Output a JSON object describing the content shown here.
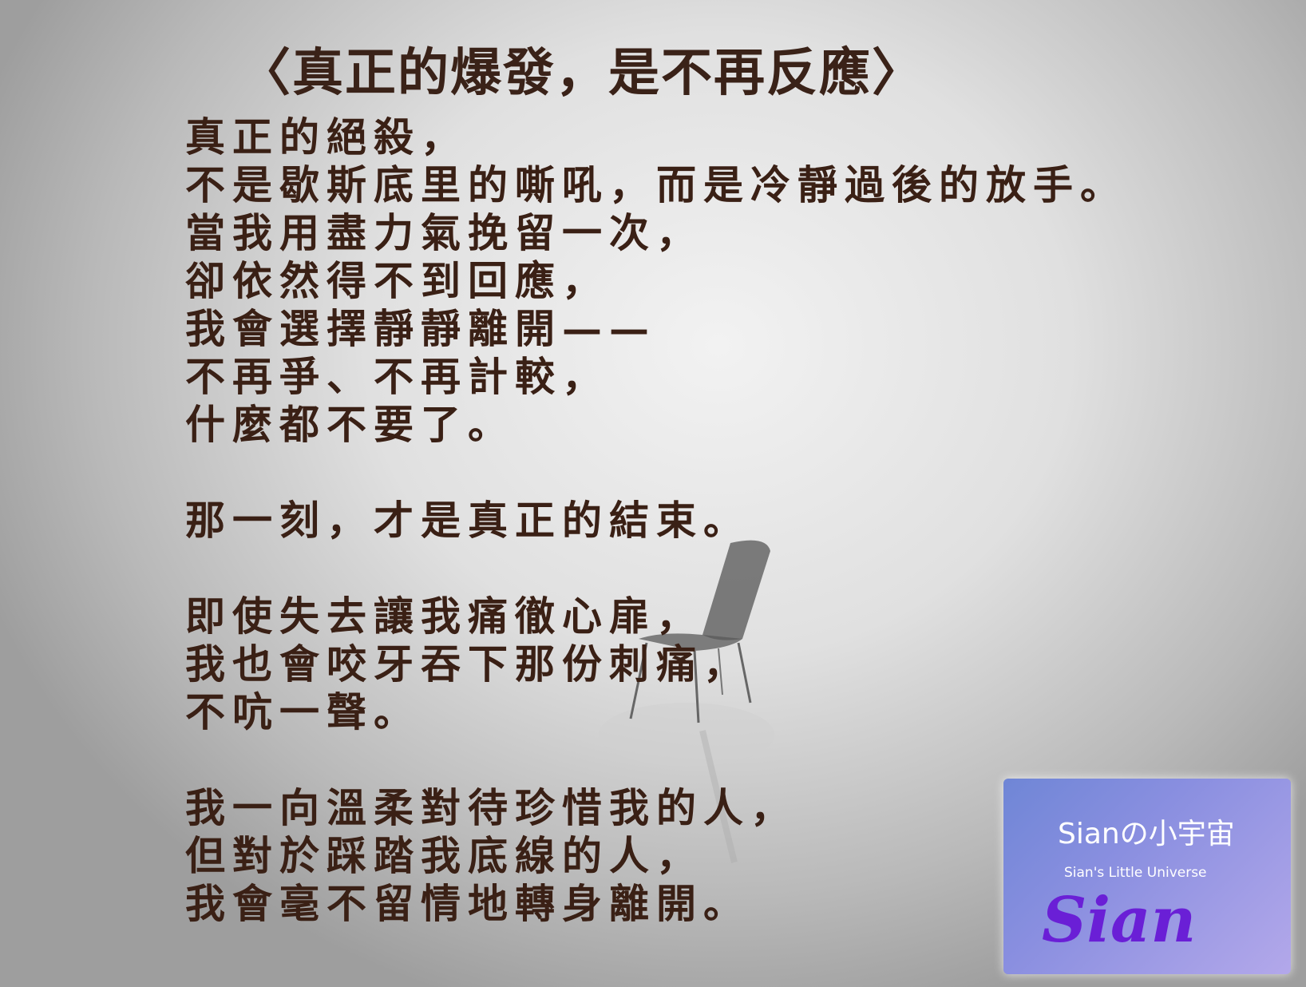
{
  "title": "〈真正的爆發，是不再反應〉",
  "stanzas": [
    [
      "真正的絕殺，",
      "不是歇斯底里的嘶吼，而是冷靜過後的放手。",
      "當我用盡力氣挽留一次，",
      "卻依然得不到回應，",
      "我會選擇靜靜離開——",
      "不再爭、不再計較，",
      "什麼都不要了。"
    ],
    [
      "那一刻，才是真正的結束。"
    ],
    [
      "即使失去讓我痛徹心扉，",
      "我也會咬牙吞下那份刺痛，",
      "不吭一聲。"
    ],
    [
      "我一向溫柔對待珍惜我的人，",
      "但對於踩踏我底線的人，",
      "我會毫不留情地轉身離開。"
    ]
  ],
  "logo": {
    "name": "Sianの小宇宙",
    "subtitle": "Sian's Little Universe",
    "signature": "Sian"
  }
}
